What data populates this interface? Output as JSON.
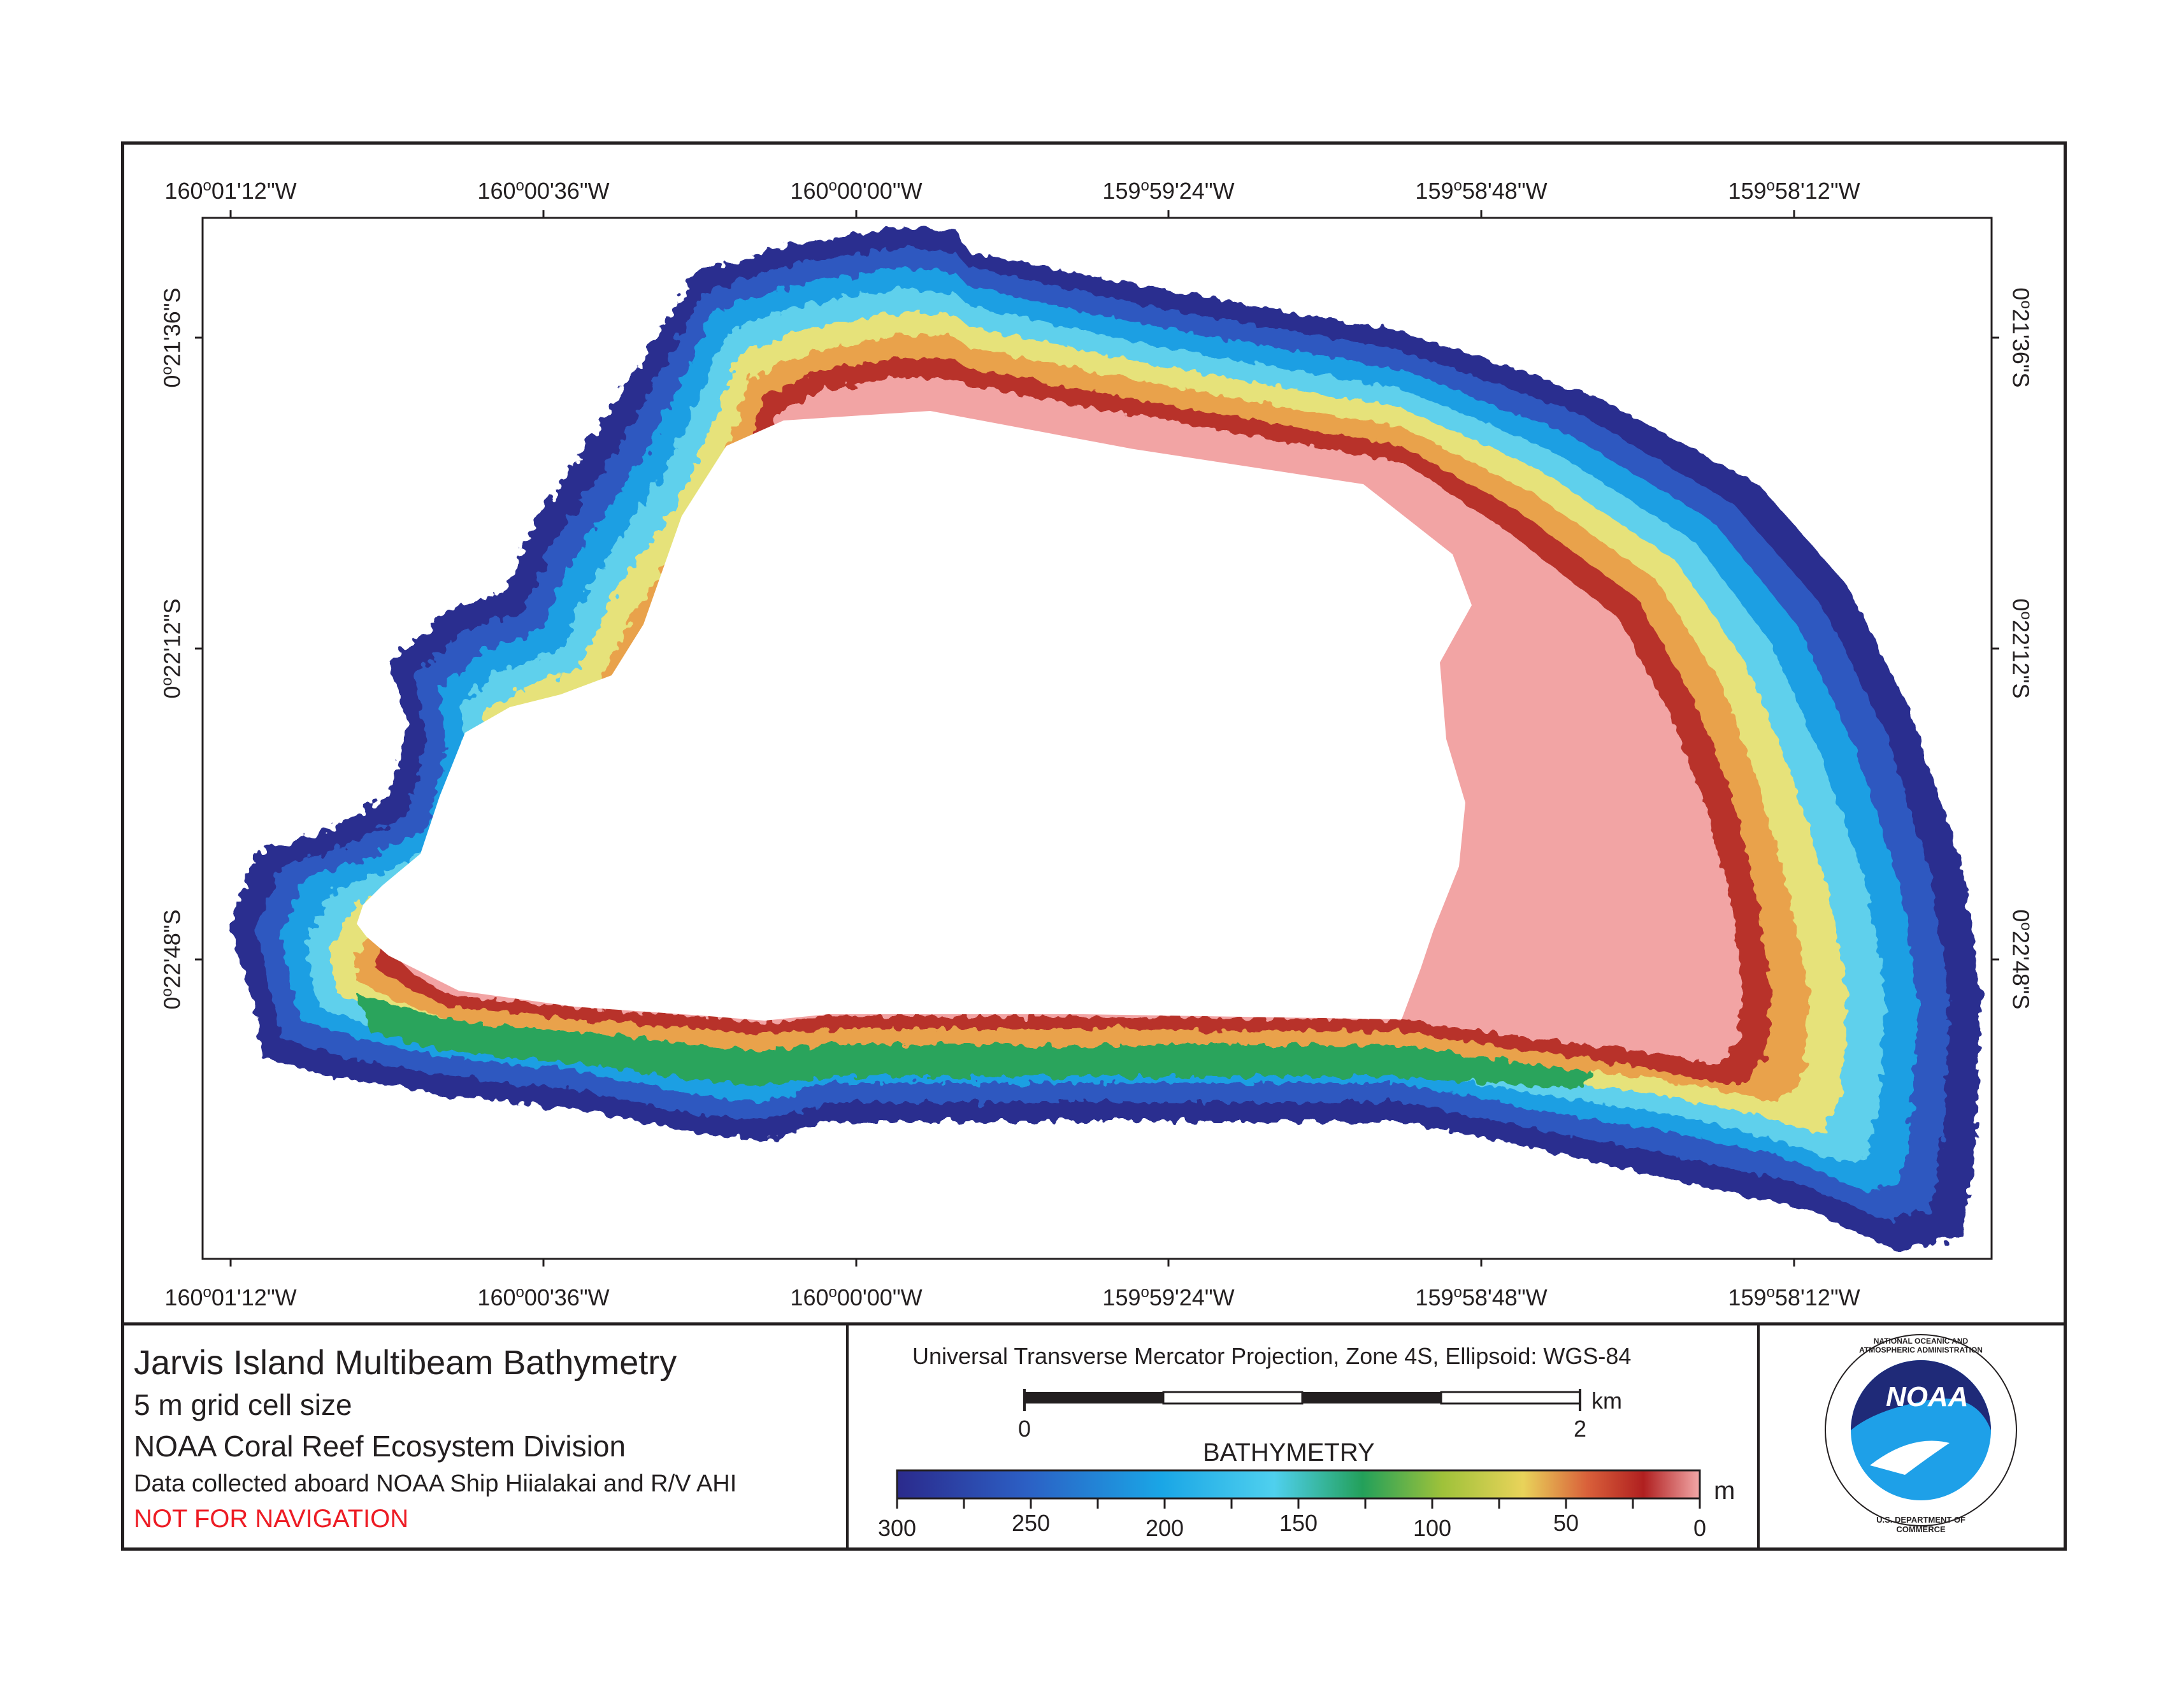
{
  "map": {
    "title": "Jarvis Island Multibeam Bathymetry",
    "grid_cell": "5 m grid cell size",
    "organization": "NOAA Coral Reef Ecosystem Division",
    "data_source": "Data collected aboard NOAA Ship Hiialakai and R/V AHI",
    "warning": "NOT FOR NAVIGATION",
    "warning_color": "#ed1c24"
  },
  "longitude_ticks": [
    {
      "deg": "160",
      "min": "01'12\"W"
    },
    {
      "deg": "160",
      "min": "00'36\"W"
    },
    {
      "deg": "160",
      "min": "00'00\"W"
    },
    {
      "deg": "159",
      "min": "59'24\"W"
    },
    {
      "deg": "159",
      "min": "58'48\"W"
    },
    {
      "deg": "159",
      "min": "58'12\"W"
    }
  ],
  "latitude_ticks": [
    {
      "deg": "0",
      "min": "21'36\"S"
    },
    {
      "deg": "0",
      "min": "22'12\"S"
    },
    {
      "deg": "0",
      "min": "22'48\"S"
    }
  ],
  "projection": "Universal Transverse Mercator Projection, Zone 4S, Ellipsoid: WGS-84",
  "scale_bar": {
    "start": "0",
    "end": "2",
    "unit": "km"
  },
  "bathymetry_legend": {
    "title": "BATHYMETRY",
    "unit": "m",
    "labels": [
      "300",
      "250",
      "200",
      "150",
      "100",
      "50",
      "0"
    ],
    "colors": [
      "#2b2a8c",
      "#2c5fc4",
      "#1aa6e6",
      "#4fd0ee",
      "#23a05a",
      "#9fc23a",
      "#e9d35a",
      "#d9603a",
      "#b02020",
      "#f0a0a0"
    ]
  },
  "logo": {
    "text": "NOAA",
    "ring_top": "NATIONAL OCEANIC AND ATMOSPHERIC ADMINISTRATION",
    "ring_bottom": "U.S. DEPARTMENT OF COMMERCE"
  }
}
